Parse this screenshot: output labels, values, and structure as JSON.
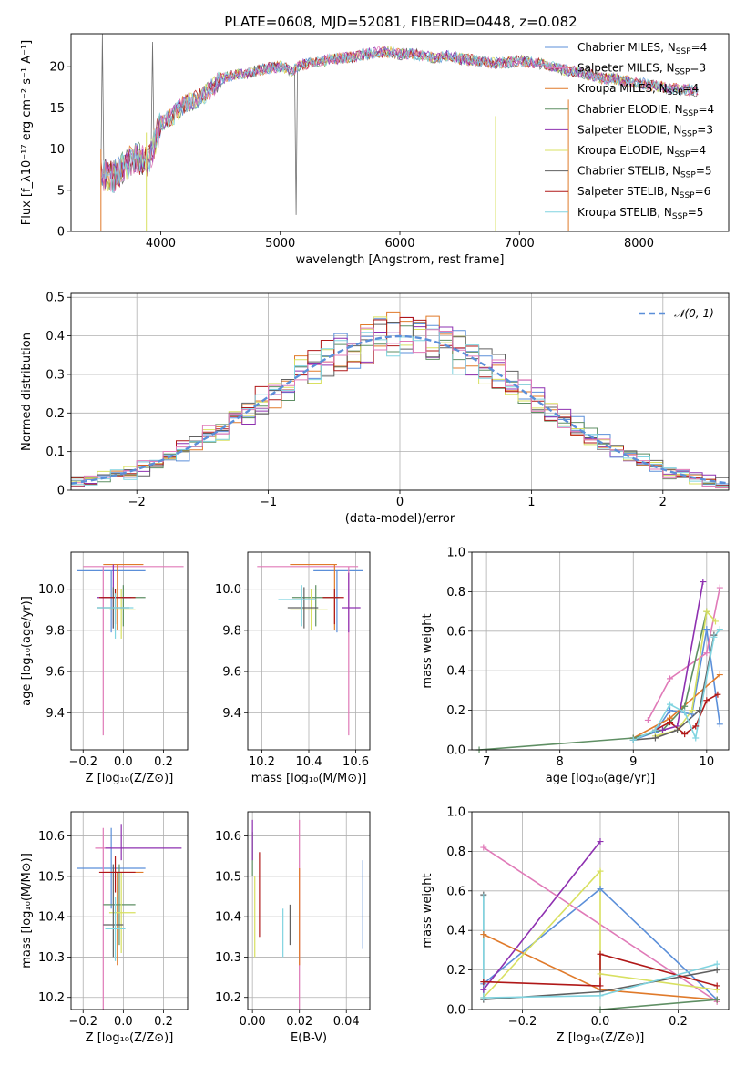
{
  "title": "PLATE=0608, MJD=52081, FIBERID=0448, z=0.082",
  "colors": {
    "blue": "#5b8fd9",
    "orange": "#e07a2a",
    "green": "#5f8f64",
    "purple": "#8e30b0",
    "yellow": "#d8e060",
    "gray": "#606060",
    "red": "#b01818",
    "cyan": "#80d4e0",
    "pink": "#e07ab8"
  },
  "chart_data": [
    {
      "id": "spectrum",
      "type": "line",
      "xlabel": "wavelength [Angstrom, rest frame]",
      "ylabel": "Flux [f_λ10⁻¹⁷ erg cm⁻² s⁻¹ A⁻¹]",
      "xlim": [
        3250,
        8750
      ],
      "ylim": [
        0,
        24
      ],
      "xticks": [
        4000,
        5000,
        6000,
        7000,
        8000
      ],
      "yticks": [
        0,
        5,
        10,
        15,
        20
      ],
      "legend_position": "upper right",
      "legend": [
        {
          "label": "Chabrier MILES, N",
          "sub": "SSP",
          "tail": "=4",
          "color": "blue"
        },
        {
          "label": "Salpeter MILES, N",
          "sub": "SSP",
          "tail": "=3",
          "color": "pink"
        },
        {
          "label": "Kroupa MILES, N",
          "sub": "SSP",
          "tail": "=4",
          "color": "orange"
        },
        {
          "label": "Chabrier ELODIE, N",
          "sub": "SSP",
          "tail": "=4",
          "color": "green"
        },
        {
          "label": "Salpeter ELODIE, N",
          "sub": "SSP",
          "tail": "=3",
          "color": "purple"
        },
        {
          "label": "Kroupa ELODIE, N",
          "sub": "SSP",
          "tail": "=4",
          "color": "yellow"
        },
        {
          "label": "Chabrier STELIB, N",
          "sub": "SSP",
          "tail": "=5",
          "color": "gray"
        },
        {
          "label": "Salpeter STELIB, N",
          "sub": "SSP",
          "tail": "=6",
          "color": "red"
        },
        {
          "label": "Kroupa STELIB, N",
          "sub": "SSP",
          "tail": "=5",
          "color": "cyan"
        }
      ],
      "spectrum_x": [
        3500,
        3600,
        3700,
        3800,
        3900,
        4000,
        4100,
        4200,
        4300,
        4400,
        4500,
        4600,
        4700,
        4800,
        4900,
        5000,
        5100,
        5200,
        5300,
        5400,
        5500,
        5600,
        5700,
        5800,
        5900,
        6000,
        6100,
        6200,
        6300,
        6400,
        6500,
        6600,
        6700,
        6800,
        6900,
        7000,
        7100,
        7200,
        7300,
        7400,
        7500,
        7600,
        7700,
        7800,
        7900,
        8000,
        8100,
        8200,
        8300,
        8400,
        8500
      ],
      "spectrum_y": [
        7,
        6.5,
        8,
        9,
        8.5,
        13,
        14,
        15.5,
        16,
        17,
        18.5,
        19,
        19.2,
        19.5,
        19.8,
        20,
        19.5,
        20.3,
        20.5,
        20.8,
        21,
        21.2,
        21.5,
        21.7,
        21.8,
        21.5,
        21.6,
        21.3,
        21,
        21.4,
        21,
        20.8,
        20.6,
        20.4,
        20.5,
        20.7,
        20.5,
        20.3,
        20,
        19.5,
        19.3,
        19,
        18.5,
        18.5,
        18.2,
        18,
        17.8,
        17.5,
        17.3,
        17.2,
        17
      ]
    },
    {
      "id": "residuals",
      "type": "bar",
      "xlabel": "(data-model)/error",
      "ylabel": "Normed distribution",
      "xlim": [
        -2.5,
        2.5
      ],
      "ylim": [
        0,
        0.51
      ],
      "xticks": [
        -2,
        -1,
        0,
        1,
        2
      ],
      "yticks": [
        0.0,
        0.1,
        0.2,
        0.3,
        0.4,
        0.5
      ],
      "grid": true,
      "legend_position": "upper right",
      "legend_label": "𝒩(0, 1)",
      "bin_width": 0.1
    },
    {
      "id": "age-vs-Z",
      "type": "scatter",
      "xlabel": "Z [log₁₀(Z/Z⊙)]",
      "ylabel": "age  [log₁₀(age/yr)]",
      "xlim": [
        -0.26,
        0.32
      ],
      "ylim": [
        9.22,
        10.18
      ],
      "xticks": [
        -0.2,
        0.0,
        0.2
      ],
      "yticks": [
        9.4,
        9.6,
        9.8,
        10.0
      ],
      "grid": true,
      "points": [
        {
          "color": "blue",
          "x": -0.06,
          "xerr": [
            0.17,
            0.17
          ],
          "y": 10.09,
          "yerr": [
            0.3,
            0
          ]
        },
        {
          "color": "pink",
          "x": -0.1,
          "xerr": [
            0.1,
            0.4
          ],
          "y": 10.11,
          "yerr": [
            0.82,
            0
          ]
        },
        {
          "color": "orange",
          "x": -0.03,
          "xerr": [
            0.07,
            0.13
          ],
          "y": 10.12,
          "yerr": [
            0.32,
            0
          ]
        },
        {
          "color": "green",
          "x": 0.0,
          "xerr": [
            0.11,
            0.11
          ],
          "y": 9.96,
          "yerr": [
            0.14,
            0.06
          ]
        },
        {
          "color": "purple",
          "x": -0.05,
          "xerr": [
            0.08,
            0.09
          ],
          "y": 9.96,
          "yerr": [
            0.15,
            0.16
          ]
        },
        {
          "color": "yellow",
          "x": -0.01,
          "xerr": [
            0.06,
            0.07
          ],
          "y": 9.9,
          "yerr": [
            0.14,
            0.1
          ]
        },
        {
          "color": "gray",
          "x": -0.05,
          "xerr": [
            0.08,
            0.08
          ],
          "y": 9.91,
          "yerr": [
            0.1,
            0.1
          ]
        },
        {
          "color": "red",
          "x": -0.04,
          "xerr": [
            0.08,
            0.1
          ],
          "y": 9.96,
          "yerr": [
            0.13,
            0.04
          ]
        },
        {
          "color": "cyan",
          "x": -0.04,
          "xerr": [
            0.09,
            0.09
          ],
          "y": 9.91,
          "yerr": [
            0.15,
            0.07
          ]
        }
      ]
    },
    {
      "id": "age-vs-mass",
      "type": "scatter",
      "xlabel": "mass [log₁₀(M/M⊙)]",
      "ylabel": "",
      "xlim": [
        10.14,
        10.66
      ],
      "ylim": [
        9.22,
        10.18
      ],
      "xticks": [
        10.2,
        10.4,
        10.6
      ],
      "yticks": [
        9.4,
        9.6,
        9.8,
        10.0
      ],
      "grid": true,
      "points": [
        {
          "color": "blue",
          "x": 10.52,
          "xerr": [
            0.1,
            0.11
          ],
          "y": 10.09,
          "yerr": [
            0.3,
            0
          ]
        },
        {
          "color": "pink",
          "x": 10.57,
          "xerr": [
            0.39,
            0.04
          ],
          "y": 10.11,
          "yerr": [
            0.82,
            0
          ]
        },
        {
          "color": "orange",
          "x": 10.51,
          "xerr": [
            0.19,
            0.01
          ],
          "y": 10.12,
          "yerr": [
            0.32,
            0
          ]
        },
        {
          "color": "green",
          "x": 10.43,
          "xerr": [
            0.1,
            0.1
          ],
          "y": 9.96,
          "yerr": [
            0.14,
            0.06
          ]
        },
        {
          "color": "purple",
          "x": 10.57,
          "xerr": [
            0.03,
            0.05
          ],
          "y": 9.91,
          "yerr": [
            0.12,
            0.17
          ]
        },
        {
          "color": "yellow",
          "x": 10.41,
          "xerr": [
            0.09,
            0.07
          ],
          "y": 9.9,
          "yerr": [
            0.1,
            0.1
          ]
        },
        {
          "color": "gray",
          "x": 10.38,
          "xerr": [
            0.07,
            0.06
          ],
          "y": 9.91,
          "yerr": [
            0.1,
            0.1
          ]
        },
        {
          "color": "red",
          "x": 10.51,
          "xerr": [
            0.05,
            0.04
          ],
          "y": 9.96,
          "yerr": [
            0.13,
            0.04
          ]
        },
        {
          "color": "cyan",
          "x": 10.37,
          "xerr": [
            0.1,
            0.06
          ],
          "y": 9.95,
          "yerr": [
            0.13,
            0.07
          ]
        }
      ]
    },
    {
      "id": "weight-vs-age",
      "type": "line",
      "xlabel": "age  [log₁₀(age/yr)]",
      "ylabel": "mass weight",
      "xlim": [
        6.8,
        10.3
      ],
      "ylim": [
        0,
        1
      ],
      "xticks": [
        7,
        8,
        9,
        10
      ],
      "yticks": [
        0.0,
        0.2,
        0.4,
        0.6,
        0.8,
        1.0
      ],
      "grid": true,
      "series": [
        {
          "color": "blue",
          "x": [
            9.0,
            9.3,
            9.5,
            9.8,
            10.0,
            10.18
          ],
          "y": [
            0.05,
            0.09,
            0.2,
            0.18,
            0.61,
            0.13
          ]
        },
        {
          "color": "pink",
          "x": [
            9.2,
            9.5,
            10.0,
            10.18
          ],
          "y": [
            0.15,
            0.36,
            0.49,
            0.82
          ]
        },
        {
          "color": "orange",
          "x": [
            9.0,
            9.5,
            10.18
          ],
          "y": [
            0.06,
            0.16,
            0.38
          ]
        },
        {
          "color": "green",
          "x": [
            6.9,
            9.0,
            9.4,
            9.7,
            10.0
          ],
          "y": [
            0.0,
            0.06,
            0.1,
            0.22,
            0.7
          ]
        },
        {
          "color": "purple",
          "x": [
            9.4,
            9.6,
            9.95
          ],
          "y": [
            0.1,
            0.12,
            0.85
          ]
        },
        {
          "color": "yellow",
          "x": [
            9.3,
            9.6,
            9.8,
            10.0,
            10.12
          ],
          "y": [
            0.07,
            0.1,
            0.2,
            0.7,
            0.65
          ]
        },
        {
          "color": "gray",
          "x": [
            9.0,
            9.3,
            9.6,
            9.9,
            10.1
          ],
          "y": [
            0.05,
            0.06,
            0.1,
            0.2,
            0.58
          ]
        },
        {
          "color": "red",
          "x": [
            9.3,
            9.5,
            9.7,
            9.85,
            10.0,
            10.15
          ],
          "y": [
            0.1,
            0.14,
            0.08,
            0.12,
            0.25,
            0.28
          ]
        },
        {
          "color": "cyan",
          "x": [
            9.0,
            9.3,
            9.5,
            9.7,
            9.85,
            10.1,
            10.18
          ],
          "y": [
            0.05,
            0.1,
            0.23,
            0.19,
            0.06,
            0.57,
            0.61
          ]
        }
      ]
    },
    {
      "id": "mass-vs-Z",
      "type": "scatter",
      "xlabel": "Z [log₁₀(Z/Z⊙)]",
      "ylabel": "mass [log₁₀(M/M⊙)]",
      "xlim": [
        -0.26,
        0.32
      ],
      "ylim": [
        10.17,
        10.66
      ],
      "xticks": [
        -0.2,
        0.0,
        0.2
      ],
      "yticks": [
        10.2,
        10.3,
        10.4,
        10.5,
        10.6
      ],
      "grid": true,
      "points": [
        {
          "color": "blue",
          "x": -0.06,
          "xerr": [
            0.17,
            0.17
          ],
          "y": 10.52,
          "yerr": [
            0.1,
            0.1
          ]
        },
        {
          "color": "pink",
          "x": -0.1,
          "xerr": [
            0.04,
            0.04
          ],
          "y": 10.57,
          "yerr": [
            0.4,
            0.05
          ]
        },
        {
          "color": "orange",
          "x": -0.03,
          "xerr": [
            0.07,
            0.13
          ],
          "y": 10.51,
          "yerr": [
            0.23,
            0.0
          ]
        },
        {
          "color": "green",
          "x": -0.02,
          "xerr": [
            0.08,
            0.08
          ],
          "y": 10.43,
          "yerr": [
            0.1,
            0.1
          ]
        },
        {
          "color": "purple",
          "x": -0.01,
          "xerr": [
            0.08,
            0.3
          ],
          "y": 10.57,
          "yerr": [
            0.03,
            0.06
          ]
        },
        {
          "color": "yellow",
          "x": -0.01,
          "xerr": [
            0.06,
            0.07
          ],
          "y": 10.41,
          "yerr": [
            0.1,
            0.1
          ]
        },
        {
          "color": "gray",
          "x": -0.05,
          "xerr": [
            0.05,
            0.05
          ],
          "y": 10.38,
          "yerr": [
            0.08,
            0.15
          ]
        },
        {
          "color": "red",
          "x": -0.04,
          "xerr": [
            0.08,
            0.1
          ],
          "y": 10.51,
          "yerr": [
            0.05,
            0.04
          ]
        },
        {
          "color": "cyan",
          "x": -0.04,
          "xerr": [
            0.05,
            0.05
          ],
          "y": 10.37,
          "yerr": [
            0.08,
            0.08
          ]
        }
      ]
    },
    {
      "id": "mass-vs-ebv",
      "type": "scatter",
      "xlabel": "E(B-V)",
      "ylabel": "",
      "xlim": [
        -0.002,
        0.05
      ],
      "ylim": [
        10.17,
        10.66
      ],
      "xticks": [
        0.0,
        0.02,
        0.04
      ],
      "yticks": [
        10.2,
        10.3,
        10.4,
        10.5,
        10.6
      ],
      "grid": true,
      "points": [
        {
          "color": "blue",
          "x": 0.047,
          "y": 10.43,
          "yerr": [
            0.11,
            0.11
          ]
        },
        {
          "color": "pink",
          "x": 0.02,
          "y": 10.43,
          "yerr": [
            0.26,
            0.21
          ]
        },
        {
          "color": "orange",
          "x": 0.02,
          "y": 10.38,
          "yerr": [
            0.1,
            0.14
          ]
        },
        {
          "color": "green",
          "x": 0.0,
          "y": 10.55,
          "yerr": [
            0.05,
            0.06
          ]
        },
        {
          "color": "purple",
          "x": 0.0,
          "y": 10.57,
          "yerr": [
            0.03,
            0.07
          ]
        },
        {
          "color": "yellow",
          "x": 0.001,
          "y": 10.4,
          "yerr": [
            0.1,
            0.1
          ]
        },
        {
          "color": "gray",
          "x": 0.016,
          "y": 10.37,
          "yerr": [
            0.04,
            0.06
          ]
        },
        {
          "color": "red",
          "x": 0.003,
          "y": 10.46,
          "yerr": [
            0.11,
            0.1
          ]
        },
        {
          "color": "cyan",
          "x": 0.013,
          "y": 10.36,
          "yerr": [
            0.06,
            0.06
          ]
        }
      ]
    },
    {
      "id": "weight-vs-Z",
      "type": "line",
      "xlabel": "Z [log₁₀(Z/Z⊙)]",
      "ylabel": "mass weight",
      "xlim": [
        -0.33,
        0.33
      ],
      "ylim": [
        0,
        1
      ],
      "xticks": [
        -0.2,
        0.0,
        0.2
      ],
      "yticks": [
        0.0,
        0.2,
        0.4,
        0.6,
        0.8,
        1.0
      ],
      "grid": true,
      "series": [
        {
          "color": "blue",
          "x": [
            -0.3,
            0.0,
            0.3
          ],
          "y": [
            0.13,
            0.61,
            0.05
          ]
        },
        {
          "color": "pink",
          "x": [
            -0.3,
            0.3
          ],
          "y": [
            0.82,
            0.04
          ]
        },
        {
          "color": "orange",
          "x": [
            -0.3,
            0.0,
            0.3
          ],
          "y": [
            0.38,
            0.1,
            0.05
          ]
        },
        {
          "color": "green",
          "x": [
            0.0,
            0.3
          ],
          "y": [
            0.0,
            0.05
          ]
        },
        {
          "color": "purple",
          "x": [
            -0.3,
            0.0
          ],
          "y": [
            0.1,
            0.85
          ]
        },
        {
          "color": "yellow",
          "x": [
            -0.3,
            0.0,
            0.0,
            0.3
          ],
          "y": [
            0.06,
            0.7,
            0.18,
            0.1
          ]
        },
        {
          "color": "gray",
          "x": [
            -0.3,
            -0.3,
            0.0,
            0.3
          ],
          "y": [
            0.58,
            0.05,
            0.09,
            0.2
          ]
        },
        {
          "color": "red",
          "x": [
            -0.3,
            0.0,
            0.0,
            0.3
          ],
          "y": [
            0.14,
            0.12,
            0.28,
            0.12
          ]
        },
        {
          "color": "cyan",
          "x": [
            -0.3,
            -0.3,
            0.0,
            0.3
          ],
          "y": [
            0.57,
            0.06,
            0.07,
            0.23
          ]
        }
      ]
    }
  ]
}
